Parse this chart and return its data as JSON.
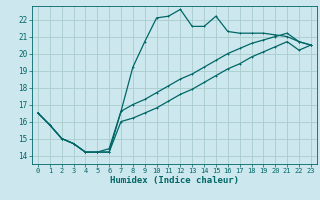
{
  "xlabel": "Humidex (Indice chaleur)",
  "bg_color": "#cce8ee",
  "grid_color": "#aacccc",
  "line_color": "#006666",
  "xlim": [
    -0.5,
    23.5
  ],
  "ylim": [
    13.5,
    22.8
  ],
  "xticks": [
    0,
    1,
    2,
    3,
    4,
    5,
    6,
    7,
    8,
    9,
    10,
    11,
    12,
    13,
    14,
    15,
    16,
    17,
    18,
    19,
    20,
    21,
    22,
    23
  ],
  "yticks": [
    14,
    15,
    16,
    17,
    18,
    19,
    20,
    21,
    22
  ],
  "line1_x": [
    0,
    1,
    2,
    3,
    4,
    5,
    6,
    7,
    8,
    9,
    10,
    11,
    12,
    13,
    14,
    15,
    16,
    17,
    18,
    19,
    20,
    21,
    22,
    23
  ],
  "line1_y": [
    16.5,
    15.8,
    15.0,
    14.7,
    14.2,
    14.2,
    14.2,
    16.6,
    19.2,
    20.7,
    22.1,
    22.2,
    22.6,
    21.6,
    21.6,
    22.2,
    21.3,
    21.2,
    21.2,
    21.2,
    21.1,
    21.0,
    20.7,
    20.5
  ],
  "line2_x": [
    0,
    1,
    2,
    3,
    4,
    5,
    6,
    7,
    8,
    9,
    10,
    11,
    12,
    13,
    14,
    15,
    16,
    17,
    18,
    19,
    20,
    21,
    22,
    23
  ],
  "line2_y": [
    16.5,
    15.8,
    15.0,
    14.7,
    14.2,
    14.2,
    14.4,
    16.6,
    17.0,
    17.3,
    17.7,
    18.1,
    18.5,
    18.8,
    19.2,
    19.6,
    20.0,
    20.3,
    20.6,
    20.8,
    21.0,
    21.2,
    20.7,
    20.5
  ],
  "line3_x": [
    0,
    1,
    2,
    3,
    4,
    5,
    6,
    7,
    8,
    9,
    10,
    11,
    12,
    13,
    14,
    15,
    16,
    17,
    18,
    19,
    20,
    21,
    22,
    23
  ],
  "line3_y": [
    16.5,
    15.8,
    15.0,
    14.7,
    14.2,
    14.2,
    14.2,
    16.0,
    16.2,
    16.5,
    16.8,
    17.2,
    17.6,
    17.9,
    18.3,
    18.7,
    19.1,
    19.4,
    19.8,
    20.1,
    20.4,
    20.7,
    20.2,
    20.5
  ]
}
